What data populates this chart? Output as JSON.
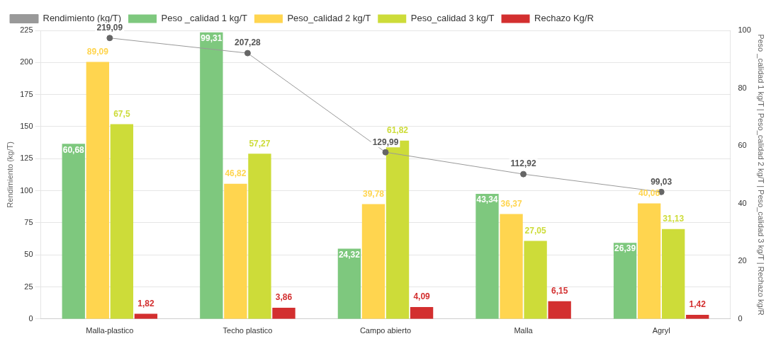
{
  "chart_data": {
    "type": "bar",
    "categories": [
      "Malla-plastico",
      "Techo plastico",
      "Campo abierto",
      "Malla",
      "Agryl"
    ],
    "ylabel": "Rendimiento (kg/T)",
    "y2label": "Peso _calidad 1 kg/T | Peso_calidad 2 kg/T | Peso_calidad 3 kg/T | Rechazo kg/R",
    "series": [
      {
        "name": "Rendimiento (kg/T)",
        "type": "line",
        "color": "#999999",
        "values": [
          219.09,
          207.28,
          129.99,
          112.92,
          99.03
        ],
        "value_labels": [
          "219,09",
          "207,28",
          "129,99",
          "112,92",
          "99,03"
        ]
      },
      {
        "name": "Peso _calidad 1 kg/T",
        "color": "#7ec87e",
        "axis": "y2",
        "values": [
          60.68,
          99.31,
          24.32,
          43.34,
          26.39
        ],
        "value_labels": [
          "60,68",
          "99,31",
          "24,32",
          "43,34",
          "26,39"
        ]
      },
      {
        "name": "Peso_calidad 2 kg/T",
        "color": "#ffd54f",
        "axis": "y2",
        "values": [
          89.09,
          46.82,
          39.78,
          36.37,
          40.06
        ],
        "value_labels": [
          "89,09",
          "46,82",
          "39,78",
          "36,37",
          "40,06"
        ]
      },
      {
        "name": "Peso_calidad 3 kg/T",
        "color": "#cddc39",
        "axis": "y2",
        "values": [
          67.5,
          57.27,
          61.82,
          27.05,
          31.13
        ],
        "value_labels": [
          "67,5",
          "57,27",
          "61,82",
          "27,05",
          "31,13"
        ]
      },
      {
        "name": "Rechazo Kg/R",
        "color": "#d32f2f",
        "axis": "y2",
        "values": [
          1.82,
          3.86,
          4.09,
          6.15,
          1.42
        ],
        "value_labels": [
          "1,82",
          "3,86",
          "4,09",
          "6,15",
          "1,42"
        ]
      }
    ],
    "ylim": [
      0,
      225
    ],
    "yticks": [
      0,
      25,
      50,
      75,
      100,
      125,
      150,
      175,
      200,
      225
    ],
    "y2lim": [
      0,
      100
    ],
    "y2ticks": [
      0,
      20,
      40,
      60,
      80,
      100
    ],
    "grid": "y",
    "legend": "top",
    "marker": "circle"
  }
}
